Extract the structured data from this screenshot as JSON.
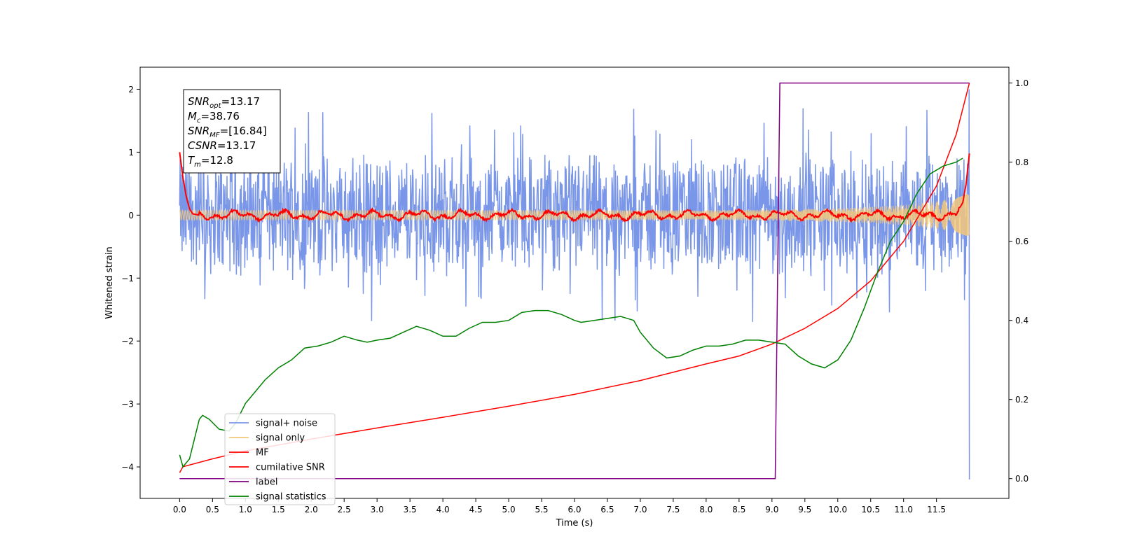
{
  "chart_data": {
    "type": "line",
    "xlabel": "Time (s)",
    "ylabel_left": "Whitened strain",
    "ylabel_right": "",
    "xlim": [
      -0.6,
      12.6
    ],
    "ylim_left": [
      -4.5,
      2.35
    ],
    "ylim_right": [
      -0.05,
      1.04
    ],
    "x_ticks": [
      "0.0",
      "0.5",
      "1.0",
      "1.5",
      "2.0",
      "2.5",
      "3.0",
      "3.5",
      "4.0",
      "4.5",
      "5.0",
      "5.5",
      "6.0",
      "6.5",
      "7.0",
      "7.5",
      "8.0",
      "8.5",
      "9.0",
      "9.5",
      "10.0",
      "10.5",
      "11.0",
      "11.5"
    ],
    "y_ticks_left": [
      "2",
      "1",
      "0",
      "−1",
      "−2",
      "−3",
      "−4"
    ],
    "y_ticks_right": [
      "1.0",
      "0.8",
      "0.6",
      "0.4",
      "0.2",
      "0.0"
    ],
    "grid": false,
    "legend_placement": "lower-left",
    "legend": [
      {
        "label": "signal+ noise",
        "color": "#7a96e8"
      },
      {
        "label": "signal only",
        "color": "#f5c87a"
      },
      {
        "label": "MF",
        "color": "#ff0000"
      },
      {
        "label": "cumilative SNR",
        "color": "#ff0000"
      },
      {
        "label": "label",
        "color": "#800080"
      },
      {
        "label": "signal statistics",
        "color": "#008000"
      }
    ],
    "annotation": [
      {
        "base": "SNR",
        "sub": "opt",
        "value": "=13.17"
      },
      {
        "base": "M",
        "sub": "c",
        "value": "=38.76"
      },
      {
        "base": "SNR",
        "sub": "MF",
        "value": "=[16.84]"
      },
      {
        "base": "CSNR",
        "sub": "",
        "value": "=13.17"
      },
      {
        "base": "T",
        "sub": "m",
        "value": "=12.8"
      }
    ],
    "series": [
      {
        "name": "signal+ noise",
        "axis": "left",
        "color": "#7a96e8",
        "description": "noise band approx ±1.0 with spikes to ±1.7",
        "x_range": [
          0.0,
          12.0
        ],
        "envelope_upper": 1.05,
        "envelope_lower": -0.95,
        "end_spike": [
          2.0,
          -4.2
        ]
      },
      {
        "name": "signal only",
        "axis": "left",
        "color": "#f5c87a",
        "x": [
          0.0,
          8.0,
          9.0,
          10.0,
          10.5,
          11.0,
          11.5,
          11.8,
          12.0
        ],
        "amplitude": [
          0.08,
          0.08,
          0.09,
          0.11,
          0.13,
          0.16,
          0.22,
          0.27,
          0.35
        ]
      },
      {
        "name": "MF",
        "axis": "left",
        "color": "#ff0000",
        "x": [
          0.0,
          0.05,
          0.1,
          0.15,
          0.2,
          0.3,
          0.5,
          1.0,
          2.0,
          3.0,
          4.0,
          5.0,
          6.0,
          7.0,
          8.0,
          9.0,
          10.0,
          11.0,
          11.5,
          11.8,
          11.9,
          11.95,
          12.0
        ],
        "y": [
          1.0,
          0.6,
          0.3,
          0.1,
          0.02,
          0.0,
          0.0,
          0.0,
          0.0,
          0.0,
          0.0,
          0.0,
          0.0,
          0.0,
          0.0,
          0.0,
          0.0,
          0.0,
          0.0,
          0.02,
          0.2,
          0.5,
          0.98
        ]
      },
      {
        "name": "cumilative SNR",
        "axis": "right",
        "color": "#ff0000",
        "x": [
          0.0,
          0.05,
          0.5,
          1.0,
          2.0,
          3.0,
          4.0,
          5.0,
          6.0,
          7.0,
          8.0,
          8.5,
          9.0,
          9.5,
          10.0,
          10.5,
          11.0,
          11.5,
          11.8,
          12.0
        ],
        "y": [
          0.015,
          0.03,
          0.05,
          0.07,
          0.1,
          0.128,
          0.155,
          0.183,
          0.213,
          0.248,
          0.29,
          0.31,
          0.34,
          0.38,
          0.43,
          0.5,
          0.6,
          0.74,
          0.87,
          1.0
        ]
      },
      {
        "name": "label",
        "axis": "right",
        "color": "#800080",
        "x": [
          0.0,
          9.05,
          9.12,
          12.0
        ],
        "y": [
          0.0,
          0.0,
          1.0,
          1.0
        ]
      },
      {
        "name": "signal statistics",
        "axis": "right",
        "color": "#008000",
        "x": [
          0.0,
          0.05,
          0.15,
          0.3,
          0.35,
          0.45,
          0.6,
          0.75,
          0.85,
          1.0,
          1.3,
          1.5,
          1.7,
          1.9,
          2.1,
          2.3,
          2.5,
          2.7,
          2.85,
          3.0,
          3.2,
          3.4,
          3.6,
          3.8,
          4.0,
          4.2,
          4.4,
          4.6,
          4.8,
          5.0,
          5.2,
          5.4,
          5.6,
          5.8,
          6.0,
          6.1,
          6.3,
          6.5,
          6.7,
          6.9,
          7.0,
          7.2,
          7.4,
          7.6,
          7.8,
          8.0,
          8.2,
          8.4,
          8.6,
          8.8,
          9.0,
          9.2,
          9.4,
          9.6,
          9.8,
          10.0,
          10.2,
          10.4,
          10.6,
          10.8,
          11.0,
          11.2,
          11.4,
          11.6,
          11.8,
          11.9
        ],
        "y": [
          0.06,
          0.03,
          0.05,
          0.15,
          0.16,
          0.15,
          0.125,
          0.12,
          0.14,
          0.19,
          0.25,
          0.28,
          0.3,
          0.33,
          0.335,
          0.345,
          0.36,
          0.35,
          0.345,
          0.35,
          0.355,
          0.37,
          0.385,
          0.375,
          0.36,
          0.36,
          0.38,
          0.395,
          0.395,
          0.4,
          0.42,
          0.425,
          0.425,
          0.415,
          0.4,
          0.395,
          0.4,
          0.405,
          0.41,
          0.4,
          0.37,
          0.33,
          0.305,
          0.31,
          0.325,
          0.335,
          0.335,
          0.34,
          0.35,
          0.35,
          0.345,
          0.34,
          0.31,
          0.29,
          0.28,
          0.3,
          0.35,
          0.43,
          0.52,
          0.6,
          0.65,
          0.72,
          0.77,
          0.79,
          0.8,
          0.81
        ]
      }
    ]
  }
}
